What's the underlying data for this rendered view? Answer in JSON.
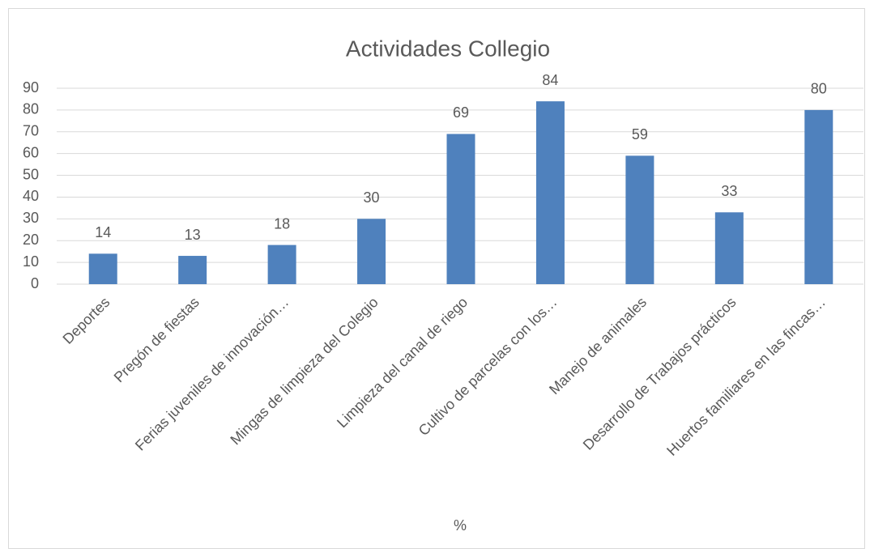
{
  "chart_data": {
    "type": "bar",
    "title": "Actividades Collegio",
    "x_label": "%",
    "categories": [
      "Deportes",
      "Pregón de fiestas",
      "Ferias juveniles de innovación…",
      "Mingas de limpieza del Colegio",
      "Limpieza del canal de riego",
      "Cultivo de parcelas con los…",
      "Manejo de animales",
      "Desarrollo de Trabajos prácticos",
      "Huertos familiares en las fincas…"
    ],
    "values": [
      14,
      13,
      18,
      30,
      69,
      84,
      59,
      33,
      80
    ],
    "color": "#4f81bd",
    "ylim": [
      0,
      90
    ],
    "yticks": [
      0,
      10,
      20,
      30,
      40,
      50,
      60,
      70,
      80,
      90
    ],
    "grid": true
  }
}
